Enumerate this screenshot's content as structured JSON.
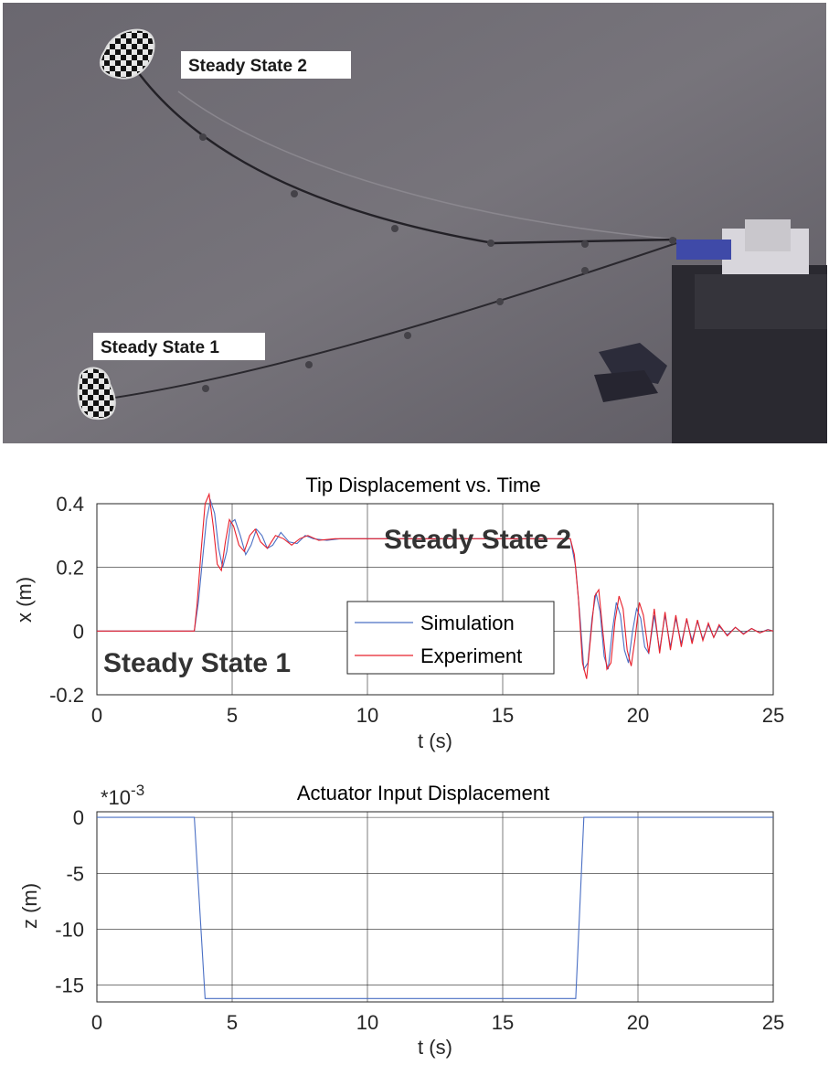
{
  "photo": {
    "label_state2": "Steady State 2",
    "label_state1": "Steady State 1",
    "colors": {
      "background": "#6f6c73",
      "wire": "#2a282d",
      "marker_dark": "#111111",
      "marker_light": "#e8e8e8"
    }
  },
  "chart_data": [
    {
      "type": "line",
      "title": "Tip Displacement vs. Time",
      "xlabel": "t (s)",
      "ylabel": "x (m)",
      "xlim": [
        0,
        25
      ],
      "ylim": [
        -0.2,
        0.4
      ],
      "xticks": [
        "0",
        "5",
        "10",
        "15",
        "20",
        "25"
      ],
      "yticks": [
        "0.4",
        "0.2",
        "0",
        "-0.2"
      ],
      "grid": true,
      "legend_position": "center-right",
      "annotations": [
        "Steady State 2",
        "Steady State 1"
      ],
      "series": [
        {
          "name": "Simulation",
          "color": "#4a6fc4",
          "x": [
            0,
            3.6,
            3.75,
            3.9,
            4.05,
            4.2,
            4.35,
            4.5,
            4.65,
            4.8,
            4.95,
            5.1,
            5.3,
            5.5,
            5.7,
            5.9,
            6.1,
            6.3,
            6.5,
            6.8,
            7.1,
            7.4,
            7.7,
            8.0,
            8.5,
            9.0,
            10.0,
            12.0,
            14.0,
            16.0,
            17.5,
            17.7,
            17.85,
            18.0,
            18.15,
            18.3,
            18.45,
            18.6,
            18.75,
            18.9,
            19.05,
            19.2,
            19.35,
            19.5,
            19.65,
            19.8,
            19.95,
            20.1,
            20.25,
            20.4,
            20.6,
            20.8,
            21.0,
            21.2,
            21.4,
            21.6,
            21.8,
            22.0,
            22.2,
            22.4,
            22.6,
            22.8,
            23.0,
            23.3,
            23.6,
            23.9,
            24.2,
            24.5,
            24.8,
            25.0
          ],
          "y": [
            0,
            0,
            0.09,
            0.22,
            0.35,
            0.41,
            0.37,
            0.26,
            0.2,
            0.25,
            0.34,
            0.35,
            0.3,
            0.24,
            0.27,
            0.32,
            0.3,
            0.26,
            0.27,
            0.31,
            0.28,
            0.275,
            0.3,
            0.29,
            0.285,
            0.29,
            0.29,
            0.29,
            0.29,
            0.29,
            0.29,
            0.2,
            0.05,
            -0.12,
            -0.1,
            0.04,
            0.12,
            0.06,
            -0.08,
            -0.12,
            0.0,
            0.09,
            0.05,
            -0.06,
            -0.1,
            0.0,
            0.07,
            0.04,
            -0.05,
            -0.07,
            0.05,
            -0.06,
            0.05,
            -0.05,
            0.04,
            -0.04,
            0.035,
            -0.03,
            0.03,
            -0.025,
            0.02,
            -0.02,
            0.015,
            -0.012,
            0.012,
            -0.008,
            0.008,
            -0.005,
            0.005,
            0.0
          ]
        },
        {
          "name": "Experiment",
          "color": "#e8202b",
          "x": [
            0,
            3.6,
            3.7,
            3.85,
            4.0,
            4.15,
            4.3,
            4.45,
            4.6,
            4.75,
            4.9,
            5.05,
            5.25,
            5.45,
            5.65,
            5.85,
            6.05,
            6.3,
            6.6,
            6.9,
            7.2,
            7.5,
            7.8,
            8.2,
            8.8,
            10.0,
            12.0,
            14.0,
            16.0,
            17.5,
            17.65,
            17.8,
            17.95,
            18.1,
            18.25,
            18.4,
            18.55,
            18.7,
            18.85,
            19.0,
            19.15,
            19.3,
            19.45,
            19.6,
            19.75,
            19.9,
            20.05,
            20.2,
            20.4,
            20.6,
            20.8,
            21.0,
            21.2,
            21.4,
            21.6,
            21.8,
            22.0,
            22.2,
            22.4,
            22.6,
            22.8,
            23.0,
            23.3,
            23.6,
            23.9,
            24.2,
            24.5,
            24.8,
            25.0
          ],
          "y": [
            0,
            0,
            0.08,
            0.25,
            0.4,
            0.43,
            0.33,
            0.21,
            0.19,
            0.28,
            0.35,
            0.33,
            0.27,
            0.25,
            0.3,
            0.32,
            0.28,
            0.26,
            0.3,
            0.29,
            0.27,
            0.29,
            0.3,
            0.285,
            0.29,
            0.29,
            0.29,
            0.29,
            0.29,
            0.29,
            0.24,
            0.1,
            -0.1,
            -0.15,
            -0.02,
            0.11,
            0.13,
            0.0,
            -0.12,
            -0.1,
            0.03,
            0.11,
            0.07,
            -0.06,
            -0.11,
            -0.02,
            0.09,
            0.05,
            -0.07,
            0.07,
            -0.07,
            0.06,
            -0.06,
            0.05,
            -0.05,
            0.04,
            -0.04,
            0.035,
            -0.03,
            0.025,
            -0.02,
            0.02,
            -0.015,
            0.012,
            -0.01,
            0.008,
            -0.006,
            0.004,
            0.0
          ]
        }
      ]
    },
    {
      "type": "line",
      "title": "Actuator Input Displacement",
      "xlabel": "t (s)",
      "ylabel": "z (m)",
      "scale_label_base": "*10",
      "scale_label_exp": "-3",
      "xlim": [
        0,
        25
      ],
      "ylim": [
        -16.5,
        0.5
      ],
      "xticks": [
        "0",
        "5",
        "10",
        "15",
        "20",
        "25"
      ],
      "yticks": [
        "0",
        "-5",
        "-10",
        "-15"
      ],
      "grid": true,
      "series": [
        {
          "color": "#4a6fc4",
          "x": [
            0,
            3.6,
            4.0,
            17.7,
            18.0,
            25
          ],
          "y": [
            0,
            0,
            -16.2,
            -16.2,
            0,
            0
          ]
        }
      ]
    }
  ]
}
